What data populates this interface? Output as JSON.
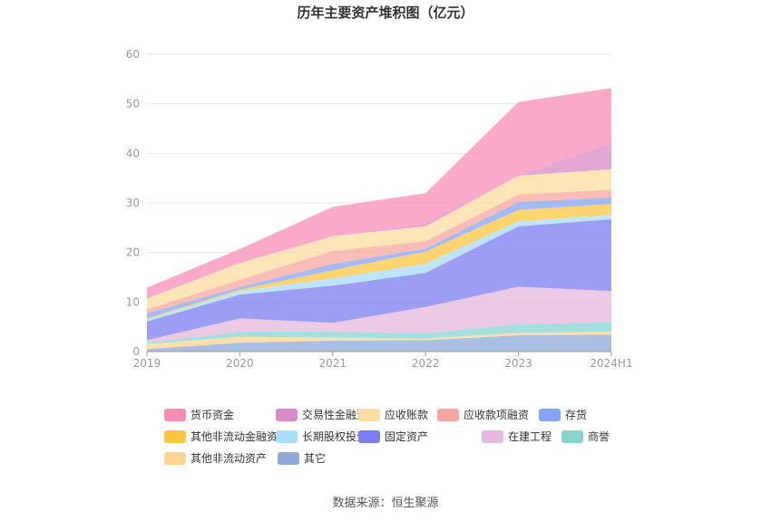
{
  "chart_data": {
    "type": "area",
    "stacked": true,
    "title": "历年主要资产堆积图（亿元）",
    "x": [
      "2019",
      "2020",
      "2021",
      "2022",
      "2023",
      "2024H1"
    ],
    "ylim": [
      0,
      60
    ],
    "yticks": [
      0,
      10,
      20,
      30,
      40,
      50,
      60
    ],
    "grid": true,
    "legend_position": "bottom",
    "series": [
      {
        "name": "其它",
        "color": "#8fa9d8",
        "values": [
          0.5,
          1.8,
          2.2,
          2.3,
          3.3,
          3.4
        ]
      },
      {
        "name": "其他非流动资产",
        "color": "#ffd591",
        "values": [
          1.0,
          1.2,
          0.6,
          0.3,
          0.5,
          0.6
        ]
      },
      {
        "name": "商誉",
        "color": "#86d4d4",
        "values": [
          0.3,
          1.0,
          1.2,
          1.1,
          1.7,
          1.9
        ]
      },
      {
        "name": "在建工程",
        "color": "#e6b8dc",
        "values": [
          0.5,
          2.7,
          1.8,
          5.3,
          7.6,
          6.3
        ]
      },
      {
        "name": "固定资产",
        "color": "#7b7ef0",
        "values": [
          3.8,
          4.8,
          7.5,
          6.9,
          12.2,
          14.5
        ]
      },
      {
        "name": "长期股权投资",
        "color": "#a8def9",
        "values": [
          0.4,
          0.7,
          1.5,
          1.8,
          1.0,
          0.9
        ]
      },
      {
        "name": "其他非流动金融资产",
        "color": "#fdc540",
        "values": [
          0.2,
          0.3,
          1.6,
          2.5,
          2.3,
          2.2
        ]
      },
      {
        "name": "存货",
        "color": "#86a4f6",
        "values": [
          1.0,
          0.5,
          1.3,
          0.6,
          1.6,
          1.3
        ]
      },
      {
        "name": "应收款项融资",
        "color": "#f7a59f",
        "values": [
          0.8,
          1.5,
          2.6,
          1.5,
          1.5,
          1.6
        ]
      },
      {
        "name": "应收账款",
        "color": "#fddc9f",
        "values": [
          2.2,
          3.4,
          3.0,
          3.0,
          3.8,
          4.1
        ]
      },
      {
        "name": "交易性金融资产",
        "color": "#d88ac4",
        "values": [
          0.0,
          0.0,
          0.0,
          0.5,
          0.0,
          5.3
        ]
      },
      {
        "name": "货币资金",
        "color": "#f98cb5",
        "values": [
          2.2,
          2.8,
          5.9,
          6.2,
          14.9,
          11.1
        ]
      }
    ],
    "legend_order": [
      "货币资金",
      "交易性金融资产",
      "应收账款",
      "应收款项融资",
      "存货",
      "其他非流动金融资产",
      "长期股权投资",
      "固定资产",
      "在建工程",
      "商誉",
      "其他非流动资产",
      "其它"
    ]
  },
  "source": "数据来源：恒生聚源"
}
